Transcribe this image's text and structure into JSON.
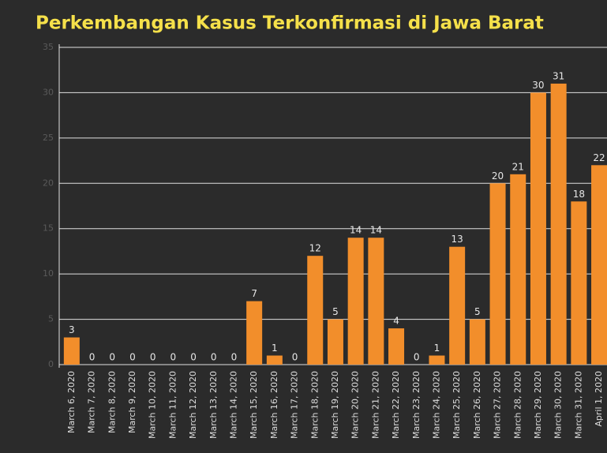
{
  "chart_data": {
    "type": "bar",
    "title": "Perkembangan Kasus Terkonfirmasi di Jawa Barat",
    "categories": [
      "March 6, 2020",
      "March 7, 2020",
      "March 8, 2020",
      "March 9, 2020",
      "March 10, 2020",
      "March 11, 2020",
      "March 12, 2020",
      "March 13, 2020",
      "March 14, 2020",
      "March 15, 2020",
      "March 16, 2020",
      "March 17, 2020",
      "March 18, 2020",
      "March 19, 2020",
      "March 20, 2020",
      "March 21, 2020",
      "March 22, 2020",
      "March 23, 2020",
      "March 24, 2020",
      "March 25, 2020",
      "March 26, 2020",
      "March 27, 2020",
      "March 28, 2020",
      "March 29, 2020",
      "March 30, 2020",
      "March 31, 2020",
      "April 1, 2020"
    ],
    "values": [
      3,
      0,
      0,
      0,
      0,
      0,
      0,
      0,
      0,
      7,
      1,
      0,
      12,
      5,
      14,
      14,
      4,
      0,
      1,
      13,
      5,
      20,
      21,
      30,
      31,
      18,
      22
    ],
    "color": "#f28e2b",
    "ylim": [
      0,
      35
    ],
    "yticks": [
      0,
      5,
      10,
      15,
      20,
      25,
      30,
      35
    ],
    "grid": true
  }
}
